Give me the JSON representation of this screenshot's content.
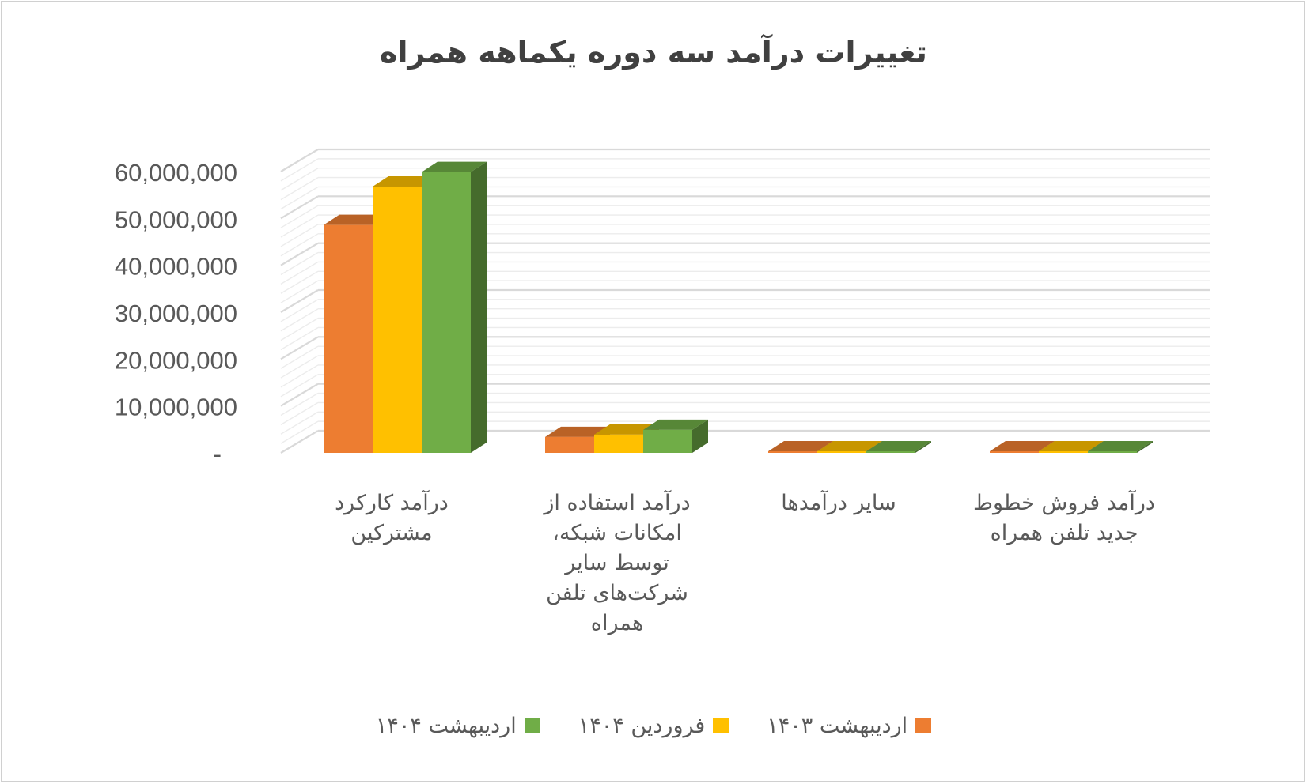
{
  "chart_data": {
    "type": "bar",
    "title": "تغییرات درآمد سه دوره یکماهه همراه",
    "categories": [
      [
        "درآمد کارکرد",
        "مشترکین"
      ],
      [
        "درآمد استفاده از",
        "امکانات شبکه،",
        "توسط سایر",
        "شرکت‌های تلفن",
        "همراه"
      ],
      [
        "سایر درآمدها"
      ],
      [
        "درآمد فروش خطوط",
        "جدید تلفن همراه"
      ]
    ],
    "series": [
      {
        "name": "اردیبهشت ۱۴۰۳",
        "color": "#ED7D31",
        "values": [
          48600000,
          3400000,
          0,
          0
        ]
      },
      {
        "name": "فروردین ۱۴۰۴",
        "color": "#FFC000",
        "values": [
          56800000,
          3900000,
          0,
          0
        ]
      },
      {
        "name": "اردیبهشت ۱۴۰۴",
        "color": "#70AD47",
        "values": [
          59900000,
          4900000,
          0,
          0
        ]
      }
    ],
    "ylim": [
      0,
      60000000
    ],
    "yticks": [
      "-",
      "10,000,000",
      "20,000,000",
      "30,000,000",
      "40,000,000",
      "50,000,000",
      "60,000,000"
    ],
    "xlabel": "",
    "ylabel": "",
    "grid": true,
    "legend_position": "bottom",
    "style": "3d-clustered-column"
  }
}
